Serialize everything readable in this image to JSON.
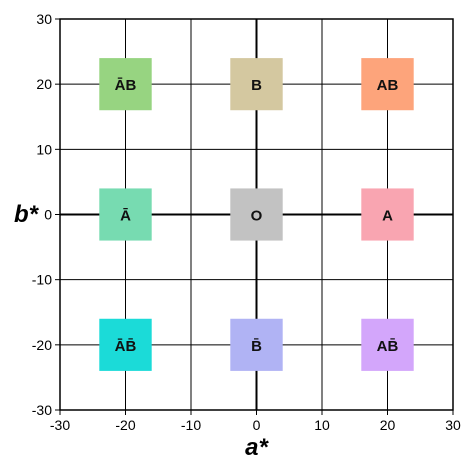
{
  "chart_data": {
    "type": "scatter",
    "xlabel": "a*",
    "ylabel": "b*",
    "xlim": [
      -30,
      30
    ],
    "ylim": [
      -30,
      30
    ],
    "x_ticks": [
      "-30",
      "-20",
      "-10",
      "0",
      "10",
      "20",
      "30"
    ],
    "y_ticks": [
      "-30",
      "-20",
      "-10",
      "0",
      "10",
      "20",
      "30"
    ],
    "grid": true,
    "points": [
      {
        "label": "ĀB",
        "x": -20,
        "y": 20,
        "color": "#97d481"
      },
      {
        "label": "B",
        "x": 0,
        "y": 20,
        "color": "#d4c8a0"
      },
      {
        "label": "AB",
        "x": 20,
        "y": 20,
        "color": "#fda47b"
      },
      {
        "label": "Ā",
        "x": -20,
        "y": 0,
        "color": "#77dbb1"
      },
      {
        "label": "O",
        "x": 0,
        "y": 0,
        "color": "#c2c2c2"
      },
      {
        "label": "A",
        "x": 20,
        "y": 0,
        "color": "#f9a5b1"
      },
      {
        "label": "ĀB̄",
        "x": -20,
        "y": -20,
        "color": "#1bdbd8"
      },
      {
        "label": "B̄",
        "x": 0,
        "y": -20,
        "color": "#b0b3f4"
      },
      {
        "label": "AB̄",
        "x": 20,
        "y": -20,
        "color": "#d3a6fb"
      }
    ],
    "marker_size": 8
  }
}
